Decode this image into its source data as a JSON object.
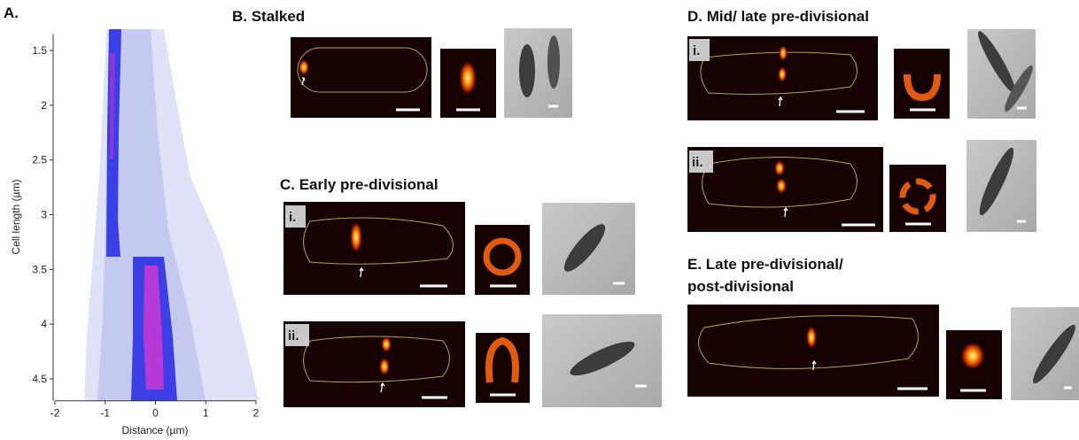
{
  "panels": {
    "A": {
      "label": "A.",
      "chart": {
        "type": "heatmap",
        "xlabel": "Distance (µm)",
        "ylabel": "Cell length (µm)",
        "xlim": [
          -2,
          2
        ],
        "ylim": [
          4.7,
          1.35
        ],
        "xticks": [
          -2,
          -1,
          0,
          1,
          2
        ],
        "yticks": [
          1.5,
          2,
          2.5,
          3,
          3.5,
          4,
          4.5
        ]
      }
    },
    "B": {
      "title": "B. Stalked"
    },
    "C": {
      "title": "C. Early pre-divisional",
      "rows": [
        "i.",
        "ii."
      ]
    },
    "D": {
      "title": "D. Mid/ late pre-divisional",
      "rows": [
        "i.",
        "ii."
      ]
    },
    "E": {
      "title_lines": [
        "E. Late pre-divisional/",
        "post-divisional"
      ]
    }
  }
}
